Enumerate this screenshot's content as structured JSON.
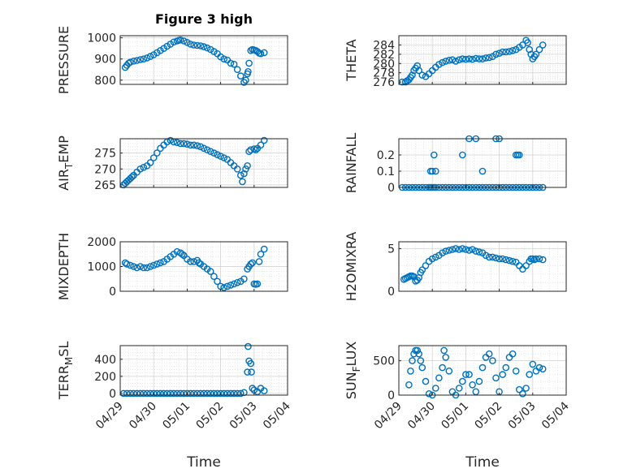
{
  "title": "Figure 3 high",
  "xlabel": "Time",
  "x_tick_labels": [
    "04/29",
    "04/30",
    "05/01",
    "05/02",
    "05/03",
    "05/04"
  ],
  "marker_color": "#0072BD",
  "chart_data": [
    {
      "type": "scatter",
      "ylabel": "PRESSURE",
      "ylim": [
        780,
        1010
      ],
      "yticks": [
        800,
        900,
        1000
      ],
      "xlim": [
        0,
        5
      ],
      "grid": true,
      "x": [
        0.15,
        0.2,
        0.25,
        0.3,
        0.4,
        0.5,
        0.6,
        0.7,
        0.8,
        0.9,
        1.0,
        1.1,
        1.2,
        1.3,
        1.4,
        1.5,
        1.6,
        1.7,
        1.75,
        1.8,
        1.9,
        2.0,
        2.1,
        2.2,
        2.3,
        2.4,
        2.5,
        2.6,
        2.7,
        2.8,
        2.9,
        3.0,
        3.1,
        3.2,
        3.3,
        3.4,
        3.5,
        3.6,
        3.7,
        3.75,
        3.8,
        3.82,
        3.85,
        3.9,
        3.95,
        4.0,
        4.05,
        4.1,
        4.15,
        4.2,
        4.3
      ],
      "y": [
        860,
        870,
        880,
        885,
        890,
        893,
        897,
        900,
        905,
        912,
        920,
        930,
        940,
        950,
        960,
        970,
        980,
        985,
        988,
        990,
        985,
        978,
        970,
        966,
        964,
        962,
        958,
        952,
        945,
        935,
        925,
        910,
        900,
        895,
        880,
        875,
        850,
        820,
        790,
        800,
        830,
        840,
        880,
        940,
        945,
        943,
        940,
        935,
        928,
        925,
        930
      ]
    },
    {
      "type": "scatter",
      "ylabel": "THETA",
      "ylim": [
        275.5,
        286
      ],
      "yticks": [
        276,
        278,
        280,
        282,
        284
      ],
      "xlim": [
        0,
        5
      ],
      "grid": true,
      "x": [
        0.1,
        0.2,
        0.25,
        0.3,
        0.35,
        0.4,
        0.45,
        0.5,
        0.55,
        0.6,
        0.7,
        0.8,
        0.9,
        1.0,
        1.1,
        1.2,
        1.3,
        1.4,
        1.5,
        1.6,
        1.7,
        1.8,
        1.9,
        2.0,
        2.1,
        2.2,
        2.3,
        2.4,
        2.5,
        2.6,
        2.7,
        2.8,
        2.9,
        3.0,
        3.1,
        3.2,
        3.3,
        3.4,
        3.5,
        3.6,
        3.7,
        3.8,
        3.85,
        3.9,
        3.95,
        4.0,
        4.05,
        4.1,
        4.2,
        4.3
      ],
      "y": [
        276,
        276,
        276.3,
        276.5,
        277,
        277.5,
        278.5,
        279,
        279.5,
        278.5,
        277.5,
        277.2,
        277.8,
        278.5,
        279.2,
        279.8,
        280.2,
        280.5,
        280.7,
        280.8,
        280.5,
        280.8,
        281,
        280.9,
        281,
        280.9,
        281.1,
        281,
        281,
        281.2,
        281.3,
        281.5,
        282,
        282.2,
        282.5,
        282.5,
        282.6,
        282.8,
        283,
        283.5,
        284,
        285,
        284.5,
        283,
        282,
        281,
        281.5,
        282,
        283,
        284
      ]
    },
    {
      "type": "scatter",
      "ylabel": "AIR_TEMP",
      "ylim": [
        264.2,
        279.5
      ],
      "yticks": [
        265,
        270,
        275
      ],
      "xlim": [
        0,
        5
      ],
      "grid": true,
      "x": [
        0.1,
        0.15,
        0.2,
        0.25,
        0.3,
        0.35,
        0.4,
        0.5,
        0.6,
        0.7,
        0.8,
        0.9,
        1.0,
        1.1,
        1.2,
        1.3,
        1.4,
        1.5,
        1.6,
        1.7,
        1.8,
        1.9,
        2.0,
        2.1,
        2.2,
        2.3,
        2.4,
        2.5,
        2.6,
        2.7,
        2.8,
        2.9,
        3.0,
        3.1,
        3.2,
        3.3,
        3.4,
        3.5,
        3.6,
        3.65,
        3.7,
        3.75,
        3.8,
        3.85,
        3.9,
        4.0,
        4.05,
        4.1,
        4.2,
        4.3
      ],
      "y": [
        265,
        265.5,
        266,
        266.5,
        267,
        267.5,
        268,
        269,
        270,
        270.5,
        271,
        272,
        273.5,
        275,
        276.5,
        277.5,
        278.5,
        279,
        278.5,
        278.3,
        278,
        278,
        277.8,
        277.5,
        277.5,
        277.3,
        277,
        276.5,
        276,
        275.5,
        275,
        274.5,
        274,
        273.5,
        273,
        272,
        271,
        270,
        268,
        266,
        268.5,
        270,
        271,
        275.5,
        276,
        276.3,
        276,
        276.5,
        277.5,
        279
      ]
    },
    {
      "type": "scatter",
      "ylabel": "RAINFALL",
      "ylim": [
        0,
        0.3
      ],
      "yticks": [
        0,
        0.1,
        0.2
      ],
      "xlim": [
        0,
        5
      ],
      "grid": true,
      "x": [
        0.1,
        0.2,
        0.3,
        0.4,
        0.5,
        0.6,
        0.7,
        0.8,
        0.9,
        0.95,
        1.0,
        1.05,
        1.1,
        1.2,
        1.3,
        1.4,
        1.5,
        1.6,
        1.7,
        1.8,
        1.9,
        2.0,
        2.1,
        2.2,
        2.3,
        2.4,
        2.5,
        2.6,
        2.7,
        2.8,
        2.9,
        3.0,
        3.1,
        3.2,
        3.3,
        3.4,
        3.5,
        3.6,
        3.7,
        3.8,
        3.9,
        4.0,
        4.1,
        4.2,
        4.3,
        0.95,
        1.0,
        1.05,
        1.1,
        1.9,
        2.1,
        2.3,
        2.5,
        2.9,
        3.0,
        3.5,
        3.55,
        3.6
      ],
      "y": [
        0,
        0,
        0,
        0,
        0,
        0,
        0,
        0,
        0,
        0,
        0,
        0,
        0,
        0,
        0,
        0,
        0,
        0,
        0,
        0,
        0,
        0,
        0,
        0,
        0,
        0,
        0,
        0,
        0,
        0,
        0,
        0,
        0,
        0,
        0,
        0,
        0,
        0,
        0,
        0,
        0,
        0,
        0,
        0,
        0,
        0.1,
        0.1,
        0.2,
        0.1,
        0.2,
        0.3,
        0.3,
        0.1,
        0.3,
        0.3,
        0.2,
        0.2,
        0.2
      ]
    },
    {
      "type": "scatter",
      "ylabel": "MIXDEPTH",
      "ylim": [
        0,
        2000
      ],
      "yticks": [
        0,
        1000,
        2000
      ],
      "xlim": [
        0,
        5
      ],
      "grid": true,
      "x": [
        0.15,
        0.2,
        0.3,
        0.4,
        0.5,
        0.6,
        0.7,
        0.8,
        0.9,
        1.0,
        1.1,
        1.2,
        1.3,
        1.4,
        1.5,
        1.6,
        1.7,
        1.8,
        1.85,
        1.9,
        2.0,
        2.1,
        2.2,
        2.3,
        2.35,
        2.4,
        2.5,
        2.6,
        2.7,
        2.8,
        2.9,
        3.0,
        3.1,
        3.2,
        3.3,
        3.4,
        3.5,
        3.6,
        3.7,
        3.8,
        3.85,
        3.9,
        3.95,
        4.0,
        4.05,
        4.1,
        4.15,
        4.2,
        4.3
      ],
      "y": [
        1150,
        1100,
        1050,
        1000,
        950,
        1000,
        950,
        950,
        1000,
        1050,
        1100,
        1150,
        1200,
        1300,
        1400,
        1500,
        1600,
        1550,
        1500,
        1450,
        1300,
        1200,
        1200,
        1250,
        1150,
        1100,
        1000,
        900,
        800,
        600,
        400,
        200,
        150,
        200,
        250,
        300,
        350,
        400,
        500,
        900,
        1000,
        1100,
        1150,
        300,
        280,
        300,
        1200,
        1500,
        1700
      ]
    },
    {
      "type": "scatter",
      "ylabel": "H2OMIXRA",
      "ylim": [
        0,
        5.8
      ],
      "yticks": [
        0,
        5
      ],
      "xlim": [
        0,
        5
      ],
      "grid": true,
      "x": [
        0.15,
        0.2,
        0.25,
        0.3,
        0.35,
        0.4,
        0.45,
        0.5,
        0.55,
        0.6,
        0.65,
        0.7,
        0.8,
        0.9,
        1.0,
        1.1,
        1.2,
        1.3,
        1.4,
        1.5,
        1.6,
        1.7,
        1.8,
        1.9,
        2.0,
        2.1,
        2.2,
        2.3,
        2.4,
        2.5,
        2.6,
        2.7,
        2.8,
        2.9,
        3.0,
        3.1,
        3.2,
        3.3,
        3.4,
        3.5,
        3.6,
        3.7,
        3.8,
        3.9,
        3.95,
        4.0,
        4.05,
        4.1,
        4.2,
        4.3
      ],
      "y": [
        1.4,
        1.5,
        1.6,
        1.7,
        1.8,
        1.8,
        1.7,
        1.2,
        1.3,
        1.6,
        2.2,
        2.5,
        3.0,
        3.5,
        3.8,
        4.0,
        4.2,
        4.5,
        4.7,
        4.8,
        4.9,
        5.0,
        4.9,
        5.0,
        4.9,
        4.8,
        4.9,
        4.7,
        4.6,
        4.5,
        4.2,
        4.0,
        4.0,
        3.9,
        3.8,
        3.8,
        3.7,
        3.6,
        3.5,
        3.4,
        3.0,
        2.6,
        3.0,
        3.5,
        3.8,
        3.8,
        3.7,
        3.8,
        3.8,
        3.7
      ]
    },
    {
      "type": "scatter",
      "ylabel": "TERR_MSL",
      "ylim": [
        -20,
        560
      ],
      "yticks": [
        0,
        200,
        400
      ],
      "xlim": [
        0,
        5
      ],
      "grid": true,
      "x": [
        0.1,
        0.2,
        0.3,
        0.4,
        0.5,
        0.6,
        0.7,
        0.8,
        0.9,
        1.0,
        1.1,
        1.2,
        1.3,
        1.4,
        1.5,
        1.6,
        1.7,
        1.8,
        1.9,
        2.0,
        2.1,
        2.2,
        2.3,
        2.4,
        2.5,
        2.6,
        2.7,
        2.8,
        2.9,
        3.0,
        3.1,
        3.2,
        3.3,
        3.4,
        3.5,
        3.6,
        3.7,
        3.8,
        3.82,
        3.85,
        3.9,
        3.92,
        3.95,
        4.0,
        4.1,
        4.2,
        4.3
      ],
      "y": [
        0,
        0,
        0,
        0,
        0,
        0,
        0,
        0,
        0,
        0,
        0,
        0,
        0,
        0,
        0,
        0,
        0,
        0,
        0,
        0,
        0,
        0,
        0,
        0,
        0,
        0,
        0,
        0,
        0,
        0,
        0,
        0,
        0,
        0,
        0,
        0,
        10,
        250,
        550,
        380,
        350,
        250,
        60,
        40,
        20,
        60,
        30
      ]
    },
    {
      "type": "scatter",
      "ylabel": "SUN_FLUX",
      "ylim": [
        0,
        720
      ],
      "yticks": [
        0,
        500
      ],
      "xlim": [
        0,
        5
      ],
      "grid": true,
      "x": [
        0.3,
        0.35,
        0.4,
        0.45,
        0.5,
        0.55,
        0.6,
        0.65,
        0.7,
        0.8,
        0.9,
        1.0,
        1.1,
        1.2,
        1.3,
        1.35,
        1.4,
        1.5,
        1.6,
        1.7,
        1.8,
        1.9,
        2.0,
        2.1,
        2.2,
        2.3,
        2.4,
        2.5,
        2.6,
        2.7,
        2.8,
        2.9,
        3.0,
        3.1,
        3.2,
        3.3,
        3.4,
        3.5,
        3.6,
        3.7,
        3.8,
        3.9,
        4.0,
        4.1,
        4.2,
        4.3
      ],
      "y": [
        150,
        350,
        500,
        600,
        650,
        650,
        600,
        500,
        400,
        200,
        20,
        0,
        100,
        250,
        400,
        650,
        550,
        350,
        50,
        0,
        100,
        200,
        300,
        300,
        150,
        50,
        200,
        400,
        550,
        600,
        500,
        250,
        50,
        300,
        400,
        550,
        600,
        350,
        80,
        20,
        100,
        300,
        450,
        350,
        400,
        380
      ]
    }
  ]
}
